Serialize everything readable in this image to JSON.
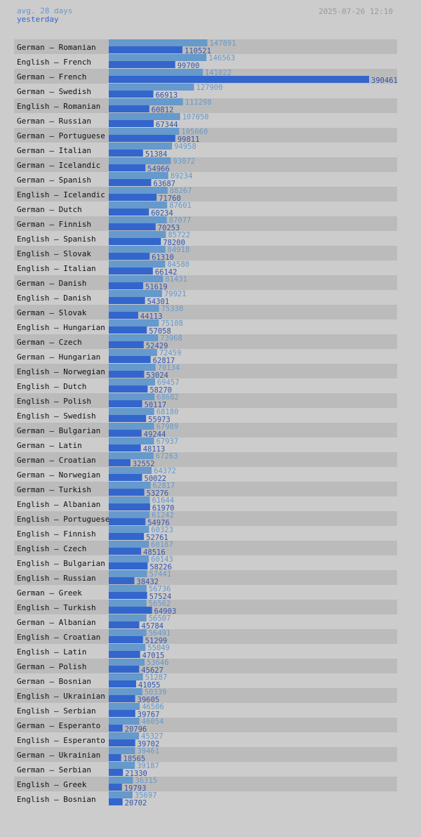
{
  "legend": {
    "avg_label": "avg. 28 days",
    "yesterday_label": "yesterday"
  },
  "timestamp": "2025-07-26 12:10",
  "colors": {
    "avg_bar": "#6699cc",
    "yesterday_bar": "#3366cc",
    "row_band": "#bbbbbb",
    "background": "#cccccc"
  },
  "chart_data": {
    "type": "bar",
    "orientation": "horizontal",
    "xlim": [
      0,
      390461
    ],
    "categories": [
      "German – Romanian",
      "English – French",
      "German – French",
      "German – Swedish",
      "English – Romanian",
      "German – Russian",
      "German – Portuguese",
      "German – Italian",
      "German – Icelandic",
      "German – Spanish",
      "English – Icelandic",
      "German – Dutch",
      "German – Finnish",
      "English – Spanish",
      "English – Slovak",
      "English – Italian",
      "German – Danish",
      "English – Danish",
      "German – Slovak",
      "English – Hungarian",
      "German – Czech",
      "German – Hungarian",
      "English – Norwegian",
      "English – Dutch",
      "English – Polish",
      "English – Swedish",
      "German – Bulgarian",
      "German – Latin",
      "German – Croatian",
      "German – Norwegian",
      "German – Turkish",
      "English – Albanian",
      "English – Portuguese",
      "English – Finnish",
      "English – Czech",
      "English – Bulgarian",
      "English – Russian",
      "German – Greek",
      "English – Turkish",
      "German – Albanian",
      "English – Croatian",
      "English – Latin",
      "German – Polish",
      "German – Bosnian",
      "English – Ukrainian",
      "English – Serbian",
      "German – Esperanto",
      "English – Esperanto",
      "German – Ukrainian",
      "German – Serbian",
      "English – Greek",
      "English – Bosnian"
    ],
    "series": [
      {
        "name": "avg. 28 days",
        "values": [
          147891,
          146563,
          141022,
          127900,
          111298,
          107050,
          105660,
          94958,
          93072,
          89234,
          88267,
          87601,
          87077,
          85722,
          84918,
          84580,
          81431,
          79921,
          75330,
          75108,
          73968,
          72459,
          70134,
          69457,
          68682,
          68180,
          67989,
          67937,
          67263,
          64372,
          62817,
          61644,
          61242,
          60323,
          60187,
          60143,
          57441,
          56736,
          56562,
          56507,
          56491,
          55049,
          53646,
          51287,
          50339,
          46506,
          46054,
          45327,
          39461,
          39187,
          36315,
          35697
        ]
      },
      {
        "name": "yesterday",
        "values": [
          110521,
          99700,
          390461,
          66913,
          60812,
          67344,
          99811,
          51384,
          54966,
          63687,
          71760,
          60234,
          70253,
          78200,
          61310,
          66142,
          51619,
          54301,
          44113,
          57058,
          52429,
          62817,
          53024,
          58270,
          50117,
          55973,
          49244,
          48113,
          32552,
          50022,
          53276,
          61970,
          54976,
          52761,
          48516,
          58226,
          38432,
          57524,
          64903,
          45784,
          51299,
          47015,
          45627,
          41055,
          39605,
          39767,
          20796,
          39702,
          18565,
          21330,
          19793,
          20702
        ]
      }
    ]
  }
}
